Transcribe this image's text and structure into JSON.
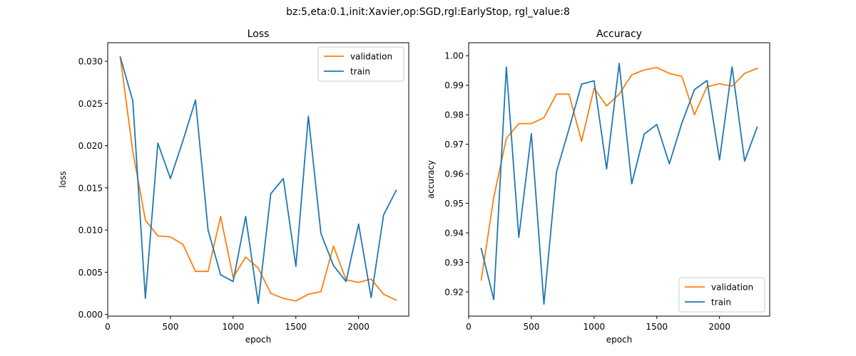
{
  "suptitle": "bz:5,eta:0.1,init:Xavier,op:SGD,rgl:EarlyStop, rgl_value:8",
  "colors": {
    "validation": "#ff7f0e",
    "train": "#1f77b4"
  },
  "chart_data": [
    {
      "type": "line",
      "title": "Loss",
      "xlabel": "epoch",
      "ylabel": "loss",
      "xlim": [
        0,
        2400
      ],
      "ylim": [
        -0.0002,
        0.0322
      ],
      "xticks": [
        0,
        500,
        1000,
        1500,
        2000
      ],
      "xtick_labels": [
        "0",
        "500",
        "1000",
        "1500",
        "2000"
      ],
      "yticks": [
        0.0,
        0.005,
        0.01,
        0.015,
        0.02,
        0.025,
        0.03
      ],
      "ytick_labels": [
        "0.000",
        "0.005",
        "0.010",
        "0.015",
        "0.020",
        "0.025",
        "0.030"
      ],
      "legend": "upper right",
      "x": [
        100,
        200,
        300,
        400,
        500,
        600,
        700,
        800,
        900,
        1000,
        1100,
        1200,
        1300,
        1400,
        1500,
        1600,
        1700,
        1800,
        1900,
        2000,
        2100,
        2200,
        2300
      ],
      "series": [
        {
          "name": "validation",
          "color": "#ff7f0e",
          "values": [
            0.0305,
            0.0193,
            0.0112,
            0.0093,
            0.0092,
            0.0083,
            0.0051,
            0.0051,
            0.0116,
            0.0044,
            0.0068,
            0.0055,
            0.0025,
            0.0019,
            0.0016,
            0.0024,
            0.0027,
            0.0081,
            0.0041,
            0.0038,
            0.0042,
            0.0024,
            0.0017
          ]
        },
        {
          "name": "train",
          "color": "#1f77b4",
          "values": [
            0.0305,
            0.0253,
            0.0019,
            0.0203,
            0.0161,
            0.0206,
            0.0254,
            0.01,
            0.0047,
            0.0039,
            0.0116,
            0.0013,
            0.0143,
            0.0161,
            0.0057,
            0.0235,
            0.0096,
            0.0058,
            0.0039,
            0.0107,
            0.002,
            0.0118,
            0.0147
          ]
        }
      ]
    },
    {
      "type": "line",
      "title": "Accuracy",
      "xlabel": "epoch",
      "ylabel": "accuracy",
      "xlim": [
        0,
        2400
      ],
      "ylim": [
        0.9118,
        1.0044
      ],
      "xticks": [
        0,
        500,
        1000,
        1500,
        2000
      ],
      "xtick_labels": [
        "0",
        "500",
        "1000",
        "1500",
        "2000"
      ],
      "yticks": [
        0.92,
        0.93,
        0.94,
        0.95,
        0.96,
        0.97,
        0.98,
        0.99,
        1.0
      ],
      "ytick_labels": [
        "0.92",
        "0.93",
        "0.94",
        "0.95",
        "0.96",
        "0.97",
        "0.98",
        "0.99",
        "1.00"
      ],
      "legend": "lower right",
      "x": [
        100,
        200,
        300,
        400,
        500,
        600,
        700,
        800,
        900,
        1000,
        1100,
        1200,
        1300,
        1400,
        1500,
        1600,
        1700,
        1800,
        1900,
        2000,
        2100,
        2200,
        2300
      ],
      "series": [
        {
          "name": "validation",
          "color": "#ff7f0e",
          "values": [
            0.924,
            0.952,
            0.972,
            0.977,
            0.977,
            0.979,
            0.987,
            0.987,
            0.971,
            0.989,
            0.983,
            0.987,
            0.9935,
            0.9952,
            0.996,
            0.994,
            0.993,
            0.98,
            0.9895,
            0.9905,
            0.9897,
            0.994,
            0.9957
          ]
        },
        {
          "name": "train",
          "color": "#1f77b4",
          "values": [
            0.9347,
            0.9174,
            0.9962,
            0.9385,
            0.9736,
            0.9159,
            0.9607,
            0.9752,
            0.9904,
            0.9915,
            0.9617,
            0.9974,
            0.9566,
            0.9735,
            0.9767,
            0.9634,
            0.9772,
            0.9885,
            0.9916,
            0.9647,
            0.9962,
            0.9643,
            0.9758
          ]
        }
      ]
    }
  ]
}
